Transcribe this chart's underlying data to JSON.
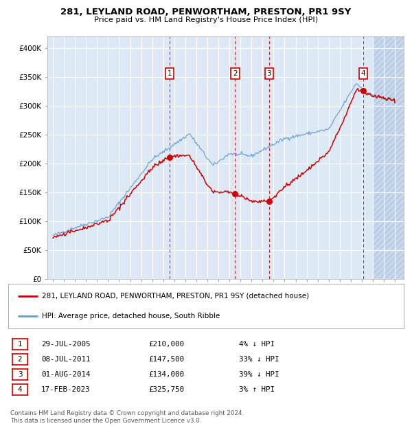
{
  "title1": "281, LEYLAND ROAD, PENWORTHAM, PRESTON, PR1 9SY",
  "title2": "Price paid vs. HM Land Registry's House Price Index (HPI)",
  "ylim": [
    0,
    420000
  ],
  "yticks": [
    0,
    50000,
    100000,
    150000,
    200000,
    250000,
    300000,
    350000,
    400000
  ],
  "ytick_labels": [
    "£0",
    "£50K",
    "£100K",
    "£150K",
    "£200K",
    "£250K",
    "£300K",
    "£350K",
    "£400K"
  ],
  "xlim_start": 1994.5,
  "xlim_end": 2026.8,
  "bg_color": "#dce9f5",
  "grid_color": "#ffffff",
  "sale_dates": [
    2005.57,
    2011.52,
    2014.59,
    2023.13
  ],
  "sale_prices": [
    210000,
    147500,
    134000,
    325750
  ],
  "sale_labels": [
    "1",
    "2",
    "3",
    "4"
  ],
  "legend_line1": "281, LEYLAND ROAD, PENWORTHAM, PRESTON, PR1 9SY (detached house)",
  "legend_line2": "HPI: Average price, detached house, South Ribble",
  "table_data": [
    [
      "1",
      "29-JUL-2005",
      "£210,000",
      "4% ↓ HPI"
    ],
    [
      "2",
      "08-JUL-2011",
      "£147,500",
      "33% ↓ HPI"
    ],
    [
      "3",
      "01-AUG-2014",
      "£134,000",
      "39% ↓ HPI"
    ],
    [
      "4",
      "17-FEB-2023",
      "£325,750",
      "3% ↑ HPI"
    ]
  ],
  "footer": "Contains HM Land Registry data © Crown copyright and database right 2024.\nThis data is licensed under the Open Government Licence v3.0.",
  "red_color": "#cc0000",
  "blue_color": "#6699cc",
  "hatch_start": 2024.0
}
